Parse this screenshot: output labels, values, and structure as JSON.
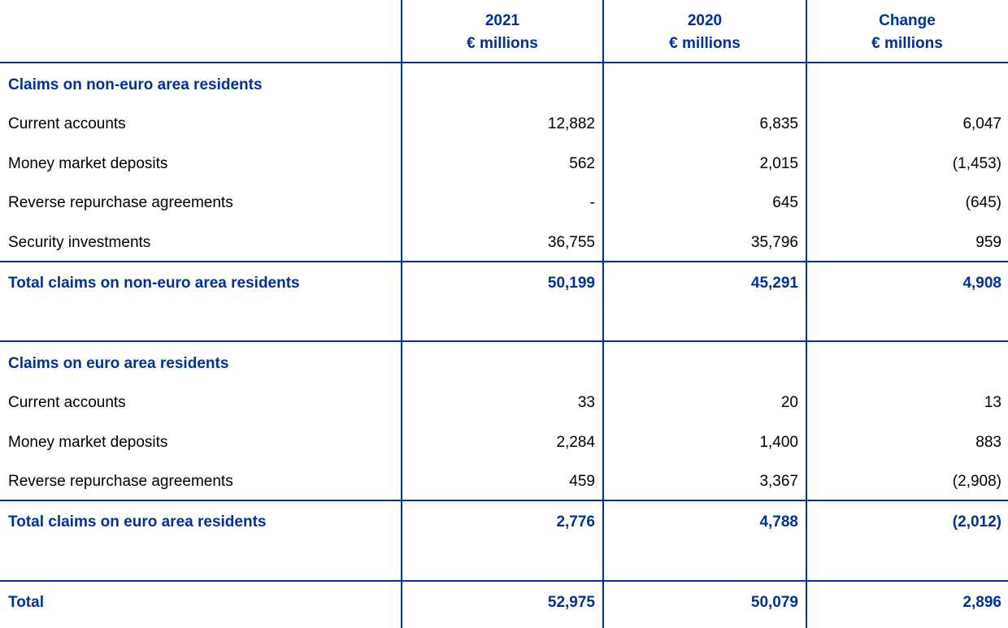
{
  "columns": [
    {
      "year": "2021",
      "unit": "€ millions"
    },
    {
      "year": "2020",
      "unit": "€ millions"
    },
    {
      "year": "Change",
      "unit": "€ millions"
    }
  ],
  "section_non_euro": {
    "heading": "Claims on non-euro area residents",
    "rows": [
      {
        "label": "Current accounts",
        "v2021": "12,882",
        "v2020": "6,835",
        "change": "6,047"
      },
      {
        "label": "Money market deposits",
        "v2021": "562",
        "v2020": "2,015",
        "change": "(1,453)"
      },
      {
        "label": "Reverse repurchase agreements",
        "v2021": "-",
        "v2020": "645",
        "change": "(645)"
      },
      {
        "label": "Security investments",
        "v2021": "36,755",
        "v2020": "35,796",
        "change": "959"
      }
    ],
    "total": {
      "label": "Total claims on non-euro area residents",
      "v2021": "50,199",
      "v2020": "45,291",
      "change": "4,908"
    }
  },
  "section_euro": {
    "heading": "Claims on euro area residents",
    "rows": [
      {
        "label": "Current accounts",
        "v2021": "33",
        "v2020": "20",
        "change": "13"
      },
      {
        "label": "Money market deposits",
        "v2021": "2,284",
        "v2020": "1,400",
        "change": "883"
      },
      {
        "label": "Reverse repurchase agreements",
        "v2021": "459",
        "v2020": "3,367",
        "change": "(2,908)"
      }
    ],
    "total": {
      "label": "Total claims on euro area residents",
      "v2021": "2,776",
      "v2020": "4,788",
      "change": "(2,012)"
    }
  },
  "grand_total": {
    "label": "Total",
    "v2021": "52,975",
    "v2020": "50,079",
    "change": "2,896"
  },
  "colors": {
    "accent": "#003299",
    "text": "#000000"
  }
}
